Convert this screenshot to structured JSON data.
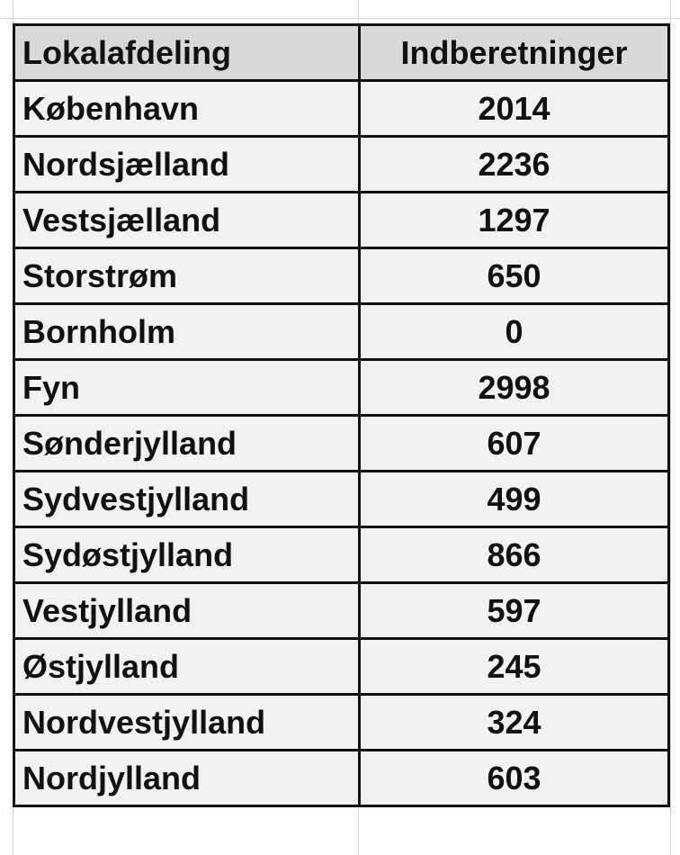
{
  "table": {
    "columns": [
      "Lokalafdeling",
      "Indberetninger"
    ],
    "rows": [
      [
        "København",
        2014
      ],
      [
        "Nordsjælland",
        2236
      ],
      [
        "Vestsjælland",
        1297
      ],
      [
        "Storstrøm",
        650
      ],
      [
        "Bornholm",
        0
      ],
      [
        "Fyn",
        2998
      ],
      [
        "Sønderjylland",
        607
      ],
      [
        "Sydvestjylland",
        499
      ],
      [
        "Sydøstjylland",
        866
      ],
      [
        "Vestjylland",
        597
      ],
      [
        "Østjylland",
        245
      ],
      [
        "Nordvestjylland",
        324
      ],
      [
        "Nordjylland",
        603
      ]
    ]
  }
}
